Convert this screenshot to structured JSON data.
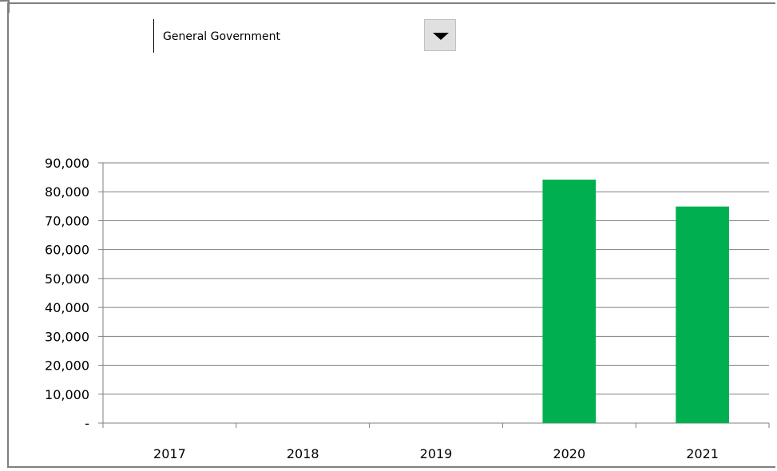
{
  "dropdown": {
    "selected": "General Government",
    "icon": "chevron-down-icon"
  },
  "chart_data": {
    "type": "bar",
    "categories": [
      "2017",
      "2018",
      "2019",
      "2020",
      "2021"
    ],
    "values": [
      0,
      0,
      0,
      84200,
      74900
    ],
    "ylim": [
      0,
      90000
    ],
    "yticks": [
      0,
      10000,
      20000,
      30000,
      40000,
      50000,
      60000,
      70000,
      80000,
      90000
    ],
    "ytick_labels": [
      "-",
      "10,000",
      "20,000",
      "30,000",
      "40,000",
      "50,000",
      "60,000",
      "70,000",
      "80,000",
      "90,000"
    ],
    "title": "",
    "xlabel": "",
    "ylabel": "",
    "grid": true,
    "bar_color": "#00b050"
  }
}
